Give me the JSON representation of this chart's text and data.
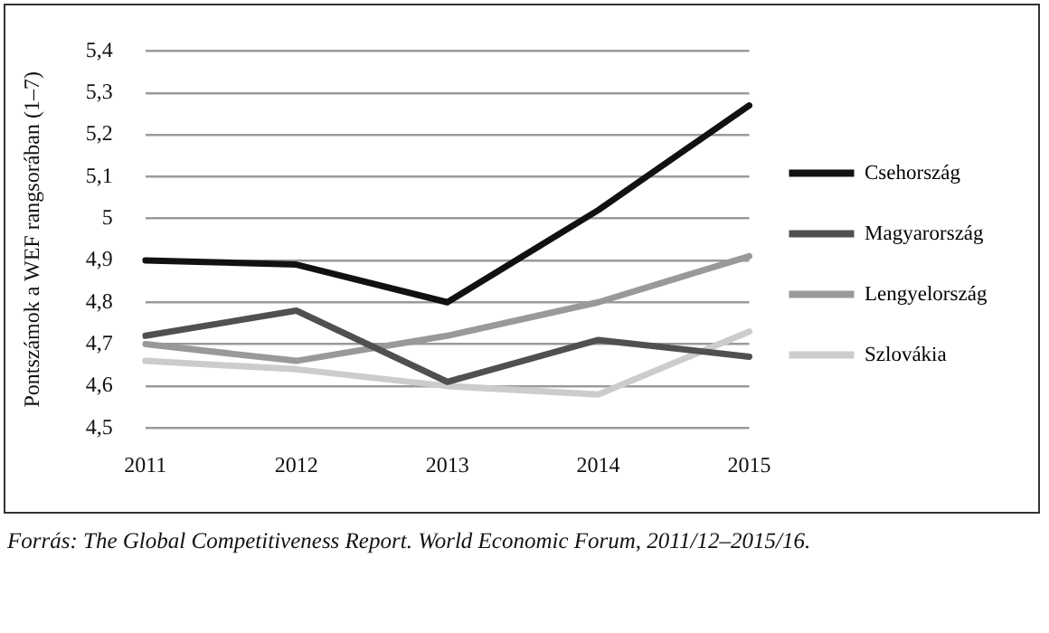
{
  "chart_data": {
    "type": "line",
    "ylabel": "Pontszámok a WEF rangsorában (1–7)",
    "categories": [
      "2011",
      "2012",
      "2013",
      "2014",
      "2015"
    ],
    "series": [
      {
        "name": "Csehország",
        "color": "#111111",
        "values": [
          4.9,
          4.89,
          4.8,
          5.02,
          5.27
        ]
      },
      {
        "name": "Magyarország",
        "color": "#505050",
        "values": [
          4.72,
          4.78,
          4.61,
          4.71,
          4.67
        ]
      },
      {
        "name": "Lengyelország",
        "color": "#999999",
        "values": [
          4.7,
          4.66,
          4.72,
          4.8,
          4.91
        ]
      },
      {
        "name": "Szlovákia",
        "color": "#cccccc",
        "values": [
          4.66,
          4.64,
          4.6,
          4.58,
          4.73
        ]
      }
    ],
    "ylim": [
      4.5,
      5.4
    ],
    "yticks": [
      {
        "value": 4.5,
        "label": "4,5"
      },
      {
        "value": 4.6,
        "label": "4,6"
      },
      {
        "value": 4.7,
        "label": "4,7"
      },
      {
        "value": 4.8,
        "label": "4,8"
      },
      {
        "value": 4.9,
        "label": "4,9"
      },
      {
        "value": 5,
        "label": "5"
      },
      {
        "value": 5.1,
        "label": "5,1"
      },
      {
        "value": 5.2,
        "label": "5,2"
      },
      {
        "value": 5.3,
        "label": "5,3"
      },
      {
        "value": 5.4,
        "label": "5,4"
      }
    ],
    "grid": "y",
    "legend": "right",
    "marker": "none",
    "line_style": "solid",
    "annotations": [
      "Forrás: The Global Competitiveness Report. World Economic Forum, 2011/12–2015/16."
    ]
  }
}
